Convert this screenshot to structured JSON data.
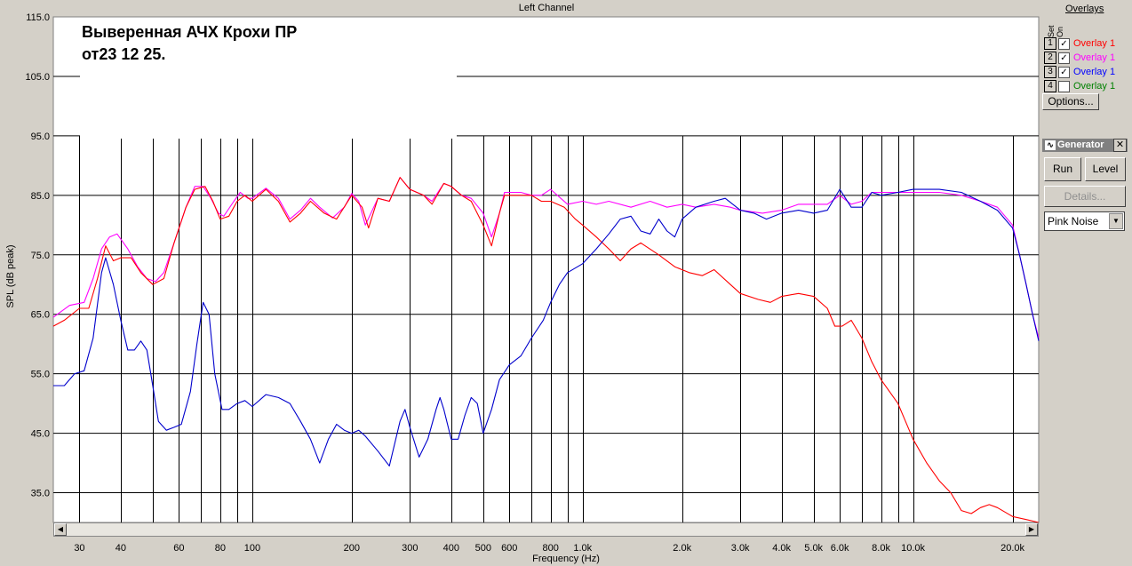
{
  "window_title": "Left Channel",
  "annotation_line1": "Выверенная  АЧХ Крохи ПР",
  "annotation_line2": "от23 12 25.",
  "overlays_panel": {
    "title": "Overlays",
    "set_label": "Set",
    "on_label": "On",
    "items": [
      {
        "num": "1",
        "checked": true,
        "label": "Overlay 1",
        "color": "#ff0000"
      },
      {
        "num": "2",
        "checked": true,
        "label": "Overlay 1",
        "color": "#ff00ff"
      },
      {
        "num": "3",
        "checked": true,
        "label": "Overlay 1",
        "color": "#0000ff"
      },
      {
        "num": "4",
        "checked": false,
        "label": "Overlay 1",
        "color": "#008000"
      }
    ],
    "options_label": "Options..."
  },
  "generator": {
    "title": "Generator",
    "run_label": "Run",
    "level_label": "Level",
    "details_label": "Details...",
    "signal": "Pink Noise"
  },
  "chart_data": {
    "type": "line",
    "xlabel": "Frequency (Hz)",
    "ylabel": "SPL (dB peak)",
    "x_scale": "log",
    "xlim": [
      25,
      24000
    ],
    "ylim": [
      30,
      115
    ],
    "y_ticks": [
      "115.0",
      "105.0",
      "95.0",
      "85.0",
      "75.0",
      "65.0",
      "55.0",
      "45.0",
      "35.0"
    ],
    "x_ticks": [
      {
        "f": 30,
        "label": "30"
      },
      {
        "f": 40,
        "label": "40"
      },
      {
        "f": 60,
        "label": "60"
      },
      {
        "f": 80,
        "label": "80"
      },
      {
        "f": 100,
        "label": "100"
      },
      {
        "f": 200,
        "label": "200"
      },
      {
        "f": 300,
        "label": "300"
      },
      {
        "f": 400,
        "label": "400"
      },
      {
        "f": 500,
        "label": "500"
      },
      {
        "f": 600,
        "label": "600"
      },
      {
        "f": 800,
        "label": "800"
      },
      {
        "f": 1000,
        "label": "1.0k"
      },
      {
        "f": 2000,
        "label": "2.0k"
      },
      {
        "f": 3000,
        "label": "3.0k"
      },
      {
        "f": 4000,
        "label": "4.0k"
      },
      {
        "f": 5000,
        "label": "5.0k"
      },
      {
        "f": 6000,
        "label": "6.0k"
      },
      {
        "f": 8000,
        "label": "8.0k"
      },
      {
        "f": 10000,
        "label": "10.0k"
      },
      {
        "f": 20000,
        "label": "20.0k"
      }
    ],
    "grid_freqs": [
      30,
      40,
      50,
      60,
      70,
      80,
      90,
      100,
      200,
      300,
      400,
      500,
      600,
      700,
      800,
      900,
      1000,
      2000,
      3000,
      4000,
      5000,
      6000,
      7000,
      8000,
      9000,
      10000,
      20000
    ],
    "grid_db": [
      105,
      95,
      85,
      75,
      65,
      55,
      45,
      35
    ],
    "series": [
      {
        "color": "#ff00ff",
        "points": [
          [
            25,
            64.5
          ],
          [
            28,
            66.5
          ],
          [
            31,
            67
          ],
          [
            33,
            71
          ],
          [
            35,
            76
          ],
          [
            37,
            78
          ],
          [
            39,
            78.5
          ],
          [
            42,
            76
          ],
          [
            45,
            73
          ],
          [
            48,
            71
          ],
          [
            51,
            70.5
          ],
          [
            54,
            72
          ],
          [
            58,
            77
          ],
          [
            63,
            83
          ],
          [
            67,
            86.5
          ],
          [
            71,
            86.5
          ],
          [
            75,
            84.5
          ],
          [
            79,
            82
          ],
          [
            82,
            81.5
          ],
          [
            88,
            84
          ],
          [
            92,
            85.5
          ],
          [
            97,
            84.5
          ],
          [
            100,
            84.5
          ],
          [
            110,
            86.2
          ],
          [
            120,
            84.5
          ],
          [
            130,
            81
          ],
          [
            140,
            82.5
          ],
          [
            150,
            84.5
          ],
          [
            160,
            83
          ],
          [
            175,
            81.2
          ],
          [
            190,
            83
          ],
          [
            200,
            85.3
          ],
          [
            210,
            84
          ],
          [
            220,
            80
          ],
          [
            240,
            84.5
          ],
          [
            260,
            84
          ],
          [
            280,
            88
          ],
          [
            300,
            86
          ],
          [
            330,
            85
          ],
          [
            350,
            84
          ],
          [
            380,
            87
          ],
          [
            400,
            86.5
          ],
          [
            430,
            85
          ],
          [
            460,
            84.5
          ],
          [
            500,
            82
          ],
          [
            530,
            78
          ],
          [
            560,
            82
          ],
          [
            580,
            85.5
          ],
          [
            650,
            85.5
          ],
          [
            700,
            85
          ],
          [
            750,
            85
          ],
          [
            800,
            86
          ],
          [
            900,
            83.5
          ],
          [
            1000,
            84
          ],
          [
            1100,
            83.5
          ],
          [
            1200,
            84
          ],
          [
            1400,
            83
          ],
          [
            1600,
            84
          ],
          [
            1800,
            83
          ],
          [
            2000,
            83.5
          ],
          [
            2200,
            83
          ],
          [
            2500,
            83.5
          ],
          [
            2800,
            83
          ],
          [
            3000,
            82.5
          ],
          [
            3500,
            82
          ],
          [
            4000,
            82.5
          ],
          [
            4500,
            83.5
          ],
          [
            5000,
            83.5
          ],
          [
            5500,
            83.5
          ],
          [
            6000,
            85
          ],
          [
            6500,
            83.5
          ],
          [
            7000,
            84
          ],
          [
            7500,
            85.5
          ],
          [
            8000,
            85.5
          ],
          [
            9000,
            85.5
          ],
          [
            10000,
            85.5
          ],
          [
            12000,
            85.5
          ],
          [
            14000,
            85
          ],
          [
            16000,
            84
          ],
          [
            18000,
            83
          ],
          [
            20000,
            80
          ],
          [
            21000,
            75
          ],
          [
            22000,
            70
          ],
          [
            23000,
            65
          ],
          [
            24000,
            61
          ]
        ]
      },
      {
        "color": "#ff0000",
        "points": [
          [
            25,
            63
          ],
          [
            27,
            64
          ],
          [
            30,
            66
          ],
          [
            32,
            66
          ],
          [
            34,
            71
          ],
          [
            36,
            76.5
          ],
          [
            38,
            74
          ],
          [
            40,
            74.5
          ],
          [
            43,
            74.5
          ],
          [
            46,
            72
          ],
          [
            50,
            70
          ],
          [
            54,
            71
          ],
          [
            58,
            77
          ],
          [
            63,
            83
          ],
          [
            67,
            86
          ],
          [
            72,
            86.5
          ],
          [
            76,
            84
          ],
          [
            80,
            81
          ],
          [
            85,
            81.5
          ],
          [
            90,
            84
          ],
          [
            95,
            85
          ],
          [
            100,
            84
          ],
          [
            110,
            86
          ],
          [
            120,
            84
          ],
          [
            130,
            80.5
          ],
          [
            140,
            82
          ],
          [
            150,
            84
          ],
          [
            165,
            82
          ],
          [
            180,
            81
          ],
          [
            200,
            85
          ],
          [
            215,
            83
          ],
          [
            225,
            79.5
          ],
          [
            240,
            84.5
          ],
          [
            260,
            84
          ],
          [
            280,
            88
          ],
          [
            300,
            86
          ],
          [
            330,
            85
          ],
          [
            350,
            83.5
          ],
          [
            380,
            87
          ],
          [
            400,
            86.5
          ],
          [
            430,
            85
          ],
          [
            460,
            84
          ],
          [
            500,
            80
          ],
          [
            530,
            76.5
          ],
          [
            560,
            82
          ],
          [
            580,
            85
          ],
          [
            650,
            85
          ],
          [
            700,
            85
          ],
          [
            750,
            84
          ],
          [
            800,
            84
          ],
          [
            880,
            83
          ],
          [
            950,
            81
          ],
          [
            1000,
            80
          ],
          [
            1100,
            78
          ],
          [
            1200,
            76
          ],
          [
            1300,
            74
          ],
          [
            1400,
            76
          ],
          [
            1500,
            77
          ],
          [
            1700,
            75
          ],
          [
            1900,
            73
          ],
          [
            2100,
            72
          ],
          [
            2300,
            71.5
          ],
          [
            2500,
            72.5
          ],
          [
            2800,
            70
          ],
          [
            3000,
            68.5
          ],
          [
            3400,
            67.5
          ],
          [
            3700,
            67
          ],
          [
            4000,
            68
          ],
          [
            4500,
            68.5
          ],
          [
            5000,
            68
          ],
          [
            5500,
            66
          ],
          [
            5800,
            63
          ],
          [
            6100,
            63
          ],
          [
            6500,
            64
          ],
          [
            7000,
            61
          ],
          [
            7500,
            57
          ],
          [
            8000,
            54
          ],
          [
            9000,
            50
          ],
          [
            10000,
            44
          ],
          [
            11000,
            40
          ],
          [
            12000,
            37
          ],
          [
            13000,
            35
          ],
          [
            14000,
            32
          ],
          [
            15000,
            31.5
          ],
          [
            16000,
            32.5
          ],
          [
            17000,
            33
          ],
          [
            18000,
            32.5
          ],
          [
            20000,
            31
          ],
          [
            22000,
            30.5
          ],
          [
            24000,
            30
          ]
        ]
      },
      {
        "color": "#0000cc",
        "points": [
          [
            25,
            53
          ],
          [
            27,
            53
          ],
          [
            29,
            55
          ],
          [
            31,
            55.5
          ],
          [
            33,
            61
          ],
          [
            35,
            72
          ],
          [
            36,
            74.5
          ],
          [
            38,
            70
          ],
          [
            40,
            64
          ],
          [
            42,
            59
          ],
          [
            44,
            59
          ],
          [
            46,
            60.5
          ],
          [
            48,
            59
          ],
          [
            50,
            53
          ],
          [
            52,
            47
          ],
          [
            55,
            45.5
          ],
          [
            58,
            46
          ],
          [
            61,
            46.5
          ],
          [
            65,
            52
          ],
          [
            68,
            60
          ],
          [
            71,
            67
          ],
          [
            74,
            65
          ],
          [
            77,
            55
          ],
          [
            81,
            49
          ],
          [
            85,
            49
          ],
          [
            90,
            50
          ],
          [
            95,
            50.5
          ],
          [
            100,
            49.5
          ],
          [
            110,
            51.5
          ],
          [
            120,
            51
          ],
          [
            130,
            50
          ],
          [
            140,
            47
          ],
          [
            150,
            44
          ],
          [
            160,
            40
          ],
          [
            170,
            44
          ],
          [
            180,
            46.5
          ],
          [
            190,
            45.5
          ],
          [
            200,
            45
          ],
          [
            210,
            45.5
          ],
          [
            220,
            44.5
          ],
          [
            240,
            42
          ],
          [
            260,
            39.5
          ],
          [
            280,
            47
          ],
          [
            290,
            49
          ],
          [
            300,
            46
          ],
          [
            320,
            41
          ],
          [
            340,
            44
          ],
          [
            360,
            49
          ],
          [
            370,
            51
          ],
          [
            380,
            49
          ],
          [
            400,
            44
          ],
          [
            420,
            44
          ],
          [
            440,
            48
          ],
          [
            460,
            51
          ],
          [
            480,
            50
          ],
          [
            500,
            45
          ],
          [
            530,
            49
          ],
          [
            560,
            54
          ],
          [
            600,
            56.5
          ],
          [
            650,
            58
          ],
          [
            700,
            61
          ],
          [
            760,
            64
          ],
          [
            800,
            67
          ],
          [
            850,
            70
          ],
          [
            900,
            72
          ],
          [
            1000,
            73.5
          ],
          [
            1100,
            76
          ],
          [
            1200,
            78.5
          ],
          [
            1300,
            81
          ],
          [
            1400,
            81.5
          ],
          [
            1500,
            79
          ],
          [
            1600,
            78.5
          ],
          [
            1700,
            81
          ],
          [
            1800,
            79
          ],
          [
            1900,
            78
          ],
          [
            2000,
            81
          ],
          [
            2200,
            83
          ],
          [
            2500,
            84
          ],
          [
            2700,
            84.5
          ],
          [
            3000,
            82.5
          ],
          [
            3300,
            82
          ],
          [
            3600,
            81
          ],
          [
            4000,
            82
          ],
          [
            4500,
            82.5
          ],
          [
            5000,
            82
          ],
          [
            5500,
            82.5
          ],
          [
            6000,
            86
          ],
          [
            6500,
            83
          ],
          [
            7000,
            83
          ],
          [
            7500,
            85.5
          ],
          [
            8000,
            85
          ],
          [
            9000,
            85.5
          ],
          [
            10000,
            86
          ],
          [
            12000,
            86
          ],
          [
            14000,
            85.5
          ],
          [
            16000,
            84
          ],
          [
            18000,
            82.5
          ],
          [
            20000,
            79.5
          ],
          [
            21000,
            75
          ],
          [
            22000,
            70
          ],
          [
            23000,
            65
          ],
          [
            24000,
            60.5
          ]
        ]
      }
    ]
  }
}
